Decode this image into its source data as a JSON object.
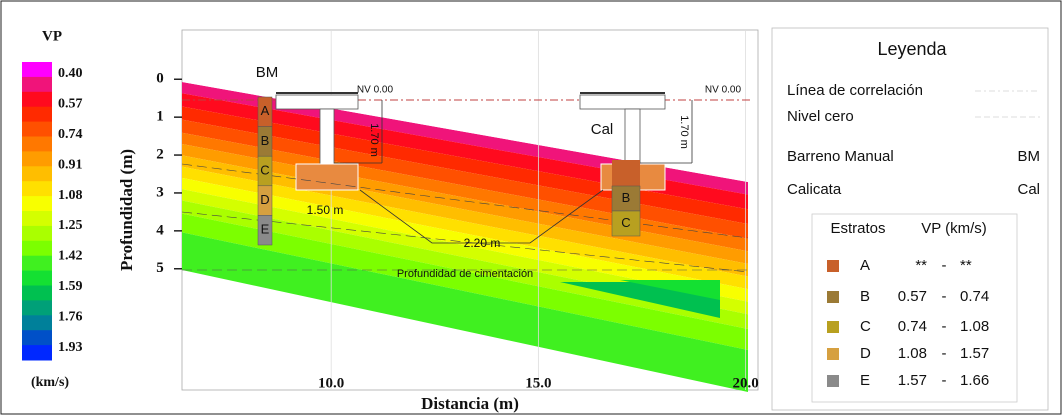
{
  "chart_data": {
    "type": "profile",
    "xlabel": "Distancia (m)",
    "ylabel": "Profundidad (m)",
    "xlim": [
      6.4,
      20.3
    ],
    "ylim": [
      -1.3,
      8.2
    ],
    "xticks": [
      {
        "value": 10,
        "label": "10.0"
      },
      {
        "value": 15,
        "label": "15.0"
      },
      {
        "value": 20,
        "label": "20.0"
      }
    ],
    "yticks": [
      0,
      1,
      2,
      3,
      4,
      5
    ],
    "colorbar": {
      "title": "VP",
      "unit": "(km/s)",
      "ticks": [
        {
          "value": 0.4,
          "label": "0.40"
        },
        0.57,
        0.74,
        0.91,
        1.08,
        1.25,
        1.42,
        1.59,
        1.76,
        1.93
      ],
      "colors": [
        "#ff00ff",
        "#f0147a",
        "#ff0a1e",
        "#ff2a00",
        "#ff5000",
        "#ff7800",
        "#ff9c00",
        "#ffbe00",
        "#ffe000",
        "#f8ff00",
        "#d4ff00",
        "#aaff00",
        "#7cff00",
        "#40f020",
        "#14e032",
        "#00c050",
        "#00a078",
        "#00809a",
        "#0050c8",
        "#0028ff"
      ]
    },
    "annotations": {
      "borehole": "BM",
      "pit": "Cal",
      "level_left": "NV 0.00",
      "level_right": "NV 0.00",
      "depth_left": "1.70 m",
      "depth_right": "1.70 m",
      "width": "1.50 m",
      "width_2": "2.20 m",
      "foundation": "Profundidad de cimentación"
    },
    "boreholes": [
      {
        "strata": [
          "A",
          "B",
          "C",
          "D",
          "E"
        ]
      },
      {
        "strata": [
          "B",
          "C"
        ]
      }
    ]
  },
  "legend": {
    "title": "Leyenda",
    "items": [
      {
        "label": "Línea de correlación"
      },
      {
        "label": "Nivel cero"
      },
      {
        "label": "Barreno Manual",
        "symbol": "BM"
      },
      {
        "label": "Calicata",
        "symbol": "Cal"
      }
    ],
    "table": {
      "headers": [
        "Estratos",
        "VP (km/s)"
      ],
      "separator": "-",
      "rows": [
        {
          "label": "A",
          "color": "#c8602a",
          "vp": [
            "**",
            "**"
          ]
        },
        {
          "label": "B",
          "color": "#9b7a35",
          "vp": [
            "0.57",
            "0.74"
          ]
        },
        {
          "label": "C",
          "color": "#b8a020",
          "vp": [
            "0.74",
            "1.08"
          ]
        },
        {
          "label": "D",
          "color": "#d6a040",
          "vp": [
            "1.08",
            "1.57"
          ]
        },
        {
          "label": "E",
          "color": "#8a8a8a",
          "vp": [
            "1.57",
            "1.66"
          ]
        }
      ]
    }
  }
}
